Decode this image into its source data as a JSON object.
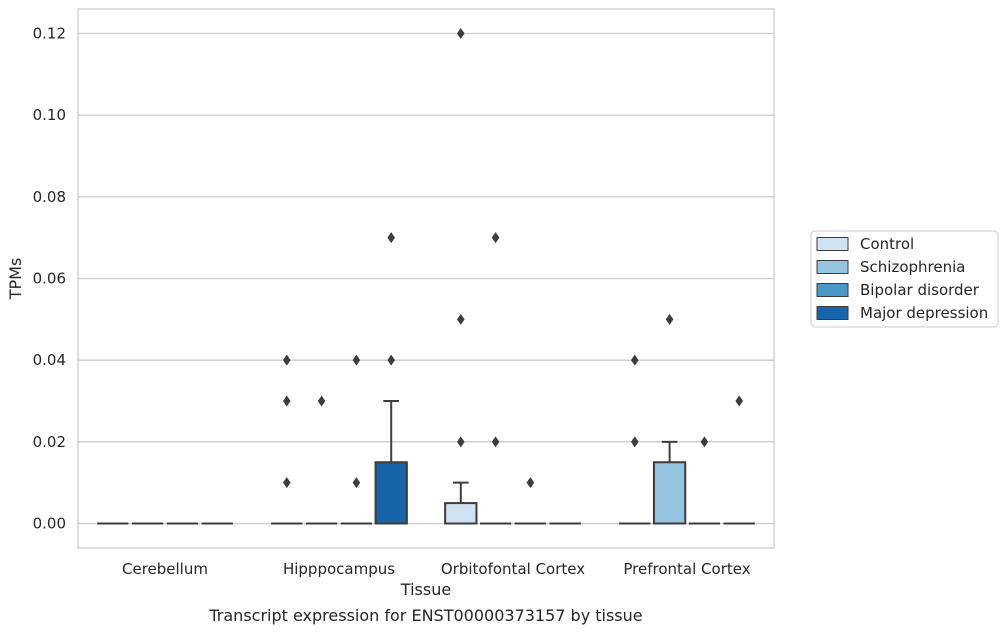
{
  "caption": "Transcript expression for ENST00000373157 by tissue",
  "chart_data": {
    "type": "box",
    "title": "",
    "xlabel": "Tissue",
    "ylabel": "TPMs",
    "ylim": [
      -0.006,
      0.126
    ],
    "yticks": [
      0.0,
      0.02,
      0.04,
      0.06,
      0.08,
      0.1,
      0.12
    ],
    "ytick_labels": [
      "0.00",
      "0.02",
      "0.04",
      "0.06",
      "0.08",
      "0.10",
      "0.12"
    ],
    "grid": "horizontal",
    "legend_position": "right",
    "categories": [
      "Cerebellum",
      "Hipppocampus",
      "Orbitofontal Cortex",
      "Prefrontal Cortex"
    ],
    "series": [
      {
        "name": "Control",
        "color": "#d0e1f2",
        "boxes": [
          {
            "q1": 0,
            "median": 0,
            "q3": 0,
            "whislo": 0,
            "whishi": 0,
            "fliers": []
          },
          {
            "q1": 0,
            "median": 0,
            "q3": 0,
            "whislo": 0,
            "whishi": 0,
            "fliers": [
              0.01,
              0.03,
              0.04
            ]
          },
          {
            "q1": 0,
            "median": 0,
            "q3": 0.005,
            "whislo": 0,
            "whishi": 0.01,
            "fliers": [
              0.02,
              0.05,
              0.12
            ]
          },
          {
            "q1": 0,
            "median": 0,
            "q3": 0,
            "whislo": 0,
            "whishi": 0,
            "fliers": [
              0.02,
              0.04
            ]
          }
        ]
      },
      {
        "name": "Schizophrenia",
        "color": "#94c4df",
        "boxes": [
          {
            "q1": 0,
            "median": 0,
            "q3": 0,
            "whislo": 0,
            "whishi": 0,
            "fliers": []
          },
          {
            "q1": 0,
            "median": 0,
            "q3": 0,
            "whislo": 0,
            "whishi": 0,
            "fliers": [
              0.03
            ]
          },
          {
            "q1": 0,
            "median": 0,
            "q3": 0,
            "whislo": 0,
            "whishi": 0,
            "fliers": [
              0.02,
              0.07
            ]
          },
          {
            "q1": 0,
            "median": 0,
            "q3": 0.015,
            "whislo": 0,
            "whishi": 0.02,
            "fliers": [
              0.05
            ]
          }
        ]
      },
      {
        "name": "Bipolar disorder",
        "color": "#4a98c9",
        "boxes": [
          {
            "q1": 0,
            "median": 0,
            "q3": 0,
            "whislo": 0,
            "whishi": 0,
            "fliers": []
          },
          {
            "q1": 0,
            "median": 0,
            "q3": 0,
            "whislo": 0,
            "whishi": 0,
            "fliers": [
              0.01,
              0.04
            ]
          },
          {
            "q1": 0,
            "median": 0,
            "q3": 0,
            "whislo": 0,
            "whishi": 0,
            "fliers": [
              0.01
            ]
          },
          {
            "q1": 0,
            "median": 0,
            "q3": 0,
            "whislo": 0,
            "whishi": 0,
            "fliers": [
              0.02
            ]
          }
        ]
      },
      {
        "name": "Major depression",
        "color": "#1764ab",
        "boxes": [
          {
            "q1": 0,
            "median": 0,
            "q3": 0,
            "whislo": 0,
            "whishi": 0,
            "fliers": []
          },
          {
            "q1": 0,
            "median": 0,
            "q3": 0.015,
            "whislo": 0,
            "whishi": 0.03,
            "fliers": [
              0.04,
              0.07
            ]
          },
          {
            "q1": 0,
            "median": 0,
            "q3": 0,
            "whislo": 0,
            "whishi": 0,
            "fliers": []
          },
          {
            "q1": 0,
            "median": 0,
            "q3": 0,
            "whislo": 0,
            "whishi": 0,
            "fliers": [
              0.03
            ]
          }
        ]
      }
    ]
  }
}
